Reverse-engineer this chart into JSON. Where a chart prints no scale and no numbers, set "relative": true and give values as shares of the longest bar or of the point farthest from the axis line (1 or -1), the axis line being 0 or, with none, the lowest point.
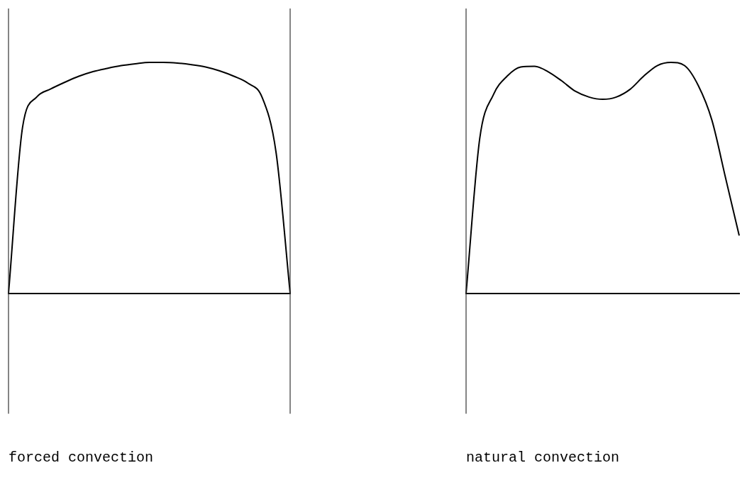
{
  "chart_data": [
    {
      "type": "line",
      "relative": true,
      "xlabel": "forced convection",
      "categories": [
        null,
        null,
        null,
        null,
        null,
        null,
        null,
        null,
        null,
        null,
        null,
        null,
        null,
        null,
        null,
        null,
        null,
        null,
        null,
        null,
        null
      ],
      "series": [
        {
          "color": "#000000",
          "values": [
            0,
            0.72,
            0.85,
            0.885,
            0.914,
            0.94,
            0.96,
            0.974,
            0.986,
            0.994,
            1,
            1,
            0.997,
            0.99,
            0.98,
            0.963,
            0.94,
            0.91,
            0.85,
            0.61,
            0
          ]
        }
      ],
      "grid": false,
      "legend": false,
      "marker": "none",
      "line_style": "solid"
    },
    {
      "type": "line",
      "relative": true,
      "xlabel": "natural convection",
      "categories": [
        null,
        null,
        null,
        null,
        null,
        null,
        null,
        null,
        null,
        null,
        null,
        null,
        null,
        null,
        null,
        null,
        null,
        null,
        null,
        null,
        null
      ],
      "series": [
        {
          "color": "#000000",
          "values": [
            0,
            0.67,
            0.86,
            0.94,
            0.98,
            0.983,
            0.96,
            0.92,
            0.875,
            0.85,
            0.84,
            0.85,
            0.883,
            0.94,
            0.986,
            1,
            0.986,
            0.9,
            0.75,
            0.5,
            0.25
          ]
        }
      ],
      "grid": false,
      "legend": false,
      "marker": "none",
      "line_style": "solid"
    }
  ]
}
